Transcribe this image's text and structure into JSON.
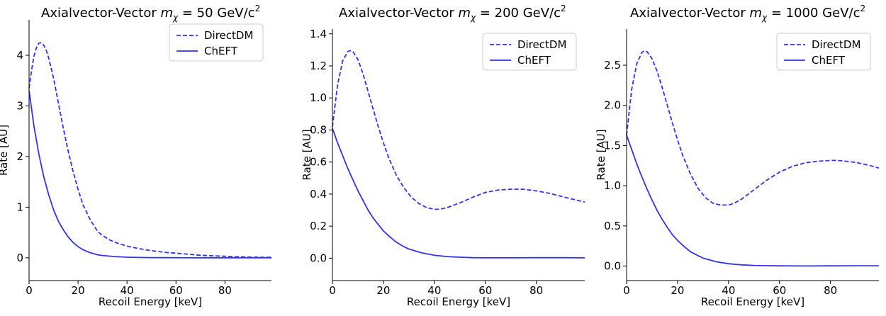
{
  "chart_data": [
    {
      "type": "line",
      "title": {
        "prefix": "Axialvector-Vector ",
        "symbol": "m",
        "sub": "χ",
        "suffix": " = 50 GeV/c",
        "sup": "2"
      },
      "xlabel": "Recoil Energy [keV]",
      "ylabel": "Rate [AU]",
      "xlim": [
        0,
        99
      ],
      "ylim": [
        -0.45,
        4.7
      ],
      "xticks": [
        0,
        20,
        40,
        60,
        80
      ],
      "yticks": [
        0,
        1,
        2,
        3,
        4
      ],
      "ytick_decimals": 0,
      "legend_position": "upper-right",
      "series": [
        {
          "name": "DirectDM",
          "style": "dashed",
          "color": "#3333ee",
          "x": [
            0,
            1,
            2,
            3,
            4,
            5,
            6,
            7,
            8,
            9,
            10,
            12,
            14,
            16,
            18,
            20,
            22,
            25,
            28,
            30,
            33,
            36,
            40,
            45,
            50,
            55,
            60,
            65,
            70,
            75,
            80,
            85,
            90,
            95,
            99
          ],
          "y": [
            3.35,
            3.7,
            3.98,
            4.15,
            4.24,
            4.25,
            4.2,
            4.1,
            3.95,
            3.75,
            3.55,
            3.05,
            2.55,
            2.1,
            1.7,
            1.35,
            1.05,
            0.75,
            0.52,
            0.44,
            0.35,
            0.29,
            0.23,
            0.18,
            0.14,
            0.11,
            0.09,
            0.07,
            0.05,
            0.04,
            0.03,
            0.02,
            0.015,
            0.01,
            0.01
          ]
        },
        {
          "name": "ChEFT",
          "style": "solid",
          "color": "#3333ee",
          "x": [
            0,
            2,
            4,
            6,
            8,
            10,
            12,
            14,
            16,
            18,
            20,
            22,
            25,
            28,
            30,
            35,
            40,
            45,
            50,
            60,
            70,
            80,
            90,
            99
          ],
          "y": [
            3.3,
            2.6,
            2.05,
            1.6,
            1.25,
            0.95,
            0.72,
            0.55,
            0.41,
            0.3,
            0.22,
            0.16,
            0.1,
            0.06,
            0.045,
            0.025,
            0.012,
            0.006,
            0.004,
            0.002,
            0.001,
            0.0,
            0.0,
            0.0
          ]
        }
      ]
    },
    {
      "type": "line",
      "title": {
        "prefix": "Axialvector-Vector ",
        "symbol": "m",
        "sub": "χ",
        "suffix": " = 200 GeV/c",
        "sup": "2"
      },
      "xlabel": "Recoil Energy [keV]",
      "ylabel": "Rate [AU]",
      "xlim": [
        0,
        99
      ],
      "ylim": [
        -0.14,
        1.43
      ],
      "xticks": [
        0,
        20,
        40,
        60,
        80
      ],
      "yticks": [
        0.0,
        0.2,
        0.4,
        0.6,
        0.8,
        1.0,
        1.2,
        1.4
      ],
      "ytick_decimals": 1,
      "legend_position": "upper-right",
      "series": [
        {
          "name": "DirectDM",
          "style": "dashed",
          "color": "#3333ee",
          "x": [
            0,
            2,
            4,
            6,
            7,
            8,
            10,
            12,
            14,
            16,
            18,
            20,
            22,
            25,
            28,
            31,
            34,
            37,
            40,
            42,
            45,
            50,
            55,
            60,
            65,
            70,
            75,
            80,
            85,
            90,
            95,
            99
          ],
          "y": [
            0.82,
            1.08,
            1.23,
            1.29,
            1.295,
            1.29,
            1.24,
            1.15,
            1.04,
            0.93,
            0.82,
            0.72,
            0.63,
            0.52,
            0.44,
            0.38,
            0.34,
            0.315,
            0.305,
            0.305,
            0.315,
            0.345,
            0.38,
            0.41,
            0.425,
            0.43,
            0.43,
            0.42,
            0.405,
            0.385,
            0.365,
            0.35
          ]
        },
        {
          "name": "ChEFT",
          "style": "solid",
          "color": "#3333ee",
          "x": [
            0,
            2,
            4,
            6,
            8,
            10,
            12,
            14,
            16,
            18,
            20,
            22,
            25,
            28,
            30,
            35,
            40,
            45,
            50,
            55,
            60,
            70,
            80,
            90,
            99
          ],
          "y": [
            0.81,
            0.72,
            0.64,
            0.56,
            0.49,
            0.42,
            0.36,
            0.3,
            0.25,
            0.21,
            0.17,
            0.14,
            0.1,
            0.072,
            0.057,
            0.033,
            0.018,
            0.01,
            0.006,
            0.003,
            0.002,
            0.002,
            0.003,
            0.003,
            0.002
          ]
        }
      ]
    },
    {
      "type": "line",
      "title": {
        "prefix": "Axialvector-Vector ",
        "symbol": "m",
        "sub": "χ",
        "suffix": " = 1000 GeV/c",
        "sup": "2"
      },
      "xlabel": "Recoil Energy [keV]",
      "ylabel": "Rate [AU]",
      "xlim": [
        0,
        99
      ],
      "ylim": [
        -0.18,
        2.95
      ],
      "xticks": [
        0,
        20,
        40,
        60,
        80
      ],
      "yticks": [
        0.0,
        0.5,
        1.0,
        1.5,
        2.0,
        2.5
      ],
      "ytick_decimals": 1,
      "legend_position": "upper-right",
      "series": [
        {
          "name": "DirectDM",
          "style": "dashed",
          "color": "#3333ee",
          "x": [
            0,
            2,
            4,
            6,
            7,
            8,
            10,
            12,
            14,
            16,
            18,
            20,
            22,
            25,
            28,
            31,
            34,
            37,
            40,
            42,
            45,
            50,
            55,
            60,
            65,
            70,
            75,
            80,
            82,
            85,
            90,
            95,
            99
          ],
          "y": [
            1.63,
            2.2,
            2.52,
            2.66,
            2.68,
            2.67,
            2.58,
            2.42,
            2.22,
            2.0,
            1.78,
            1.57,
            1.38,
            1.15,
            0.97,
            0.85,
            0.78,
            0.76,
            0.76,
            0.78,
            0.83,
            0.95,
            1.07,
            1.17,
            1.24,
            1.285,
            1.305,
            1.315,
            1.315,
            1.31,
            1.29,
            1.255,
            1.22
          ]
        },
        {
          "name": "ChEFT",
          "style": "solid",
          "color": "#3333ee",
          "x": [
            0,
            2,
            4,
            6,
            8,
            10,
            12,
            14,
            16,
            18,
            20,
            22,
            25,
            28,
            30,
            35,
            40,
            45,
            50,
            55,
            60,
            70,
            80,
            90,
            99
          ],
          "y": [
            1.63,
            1.45,
            1.27,
            1.11,
            0.96,
            0.82,
            0.69,
            0.58,
            0.48,
            0.39,
            0.32,
            0.26,
            0.18,
            0.13,
            0.1,
            0.055,
            0.03,
            0.016,
            0.009,
            0.005,
            0.003,
            0.002,
            0.003,
            0.004,
            0.004
          ]
        }
      ]
    }
  ]
}
